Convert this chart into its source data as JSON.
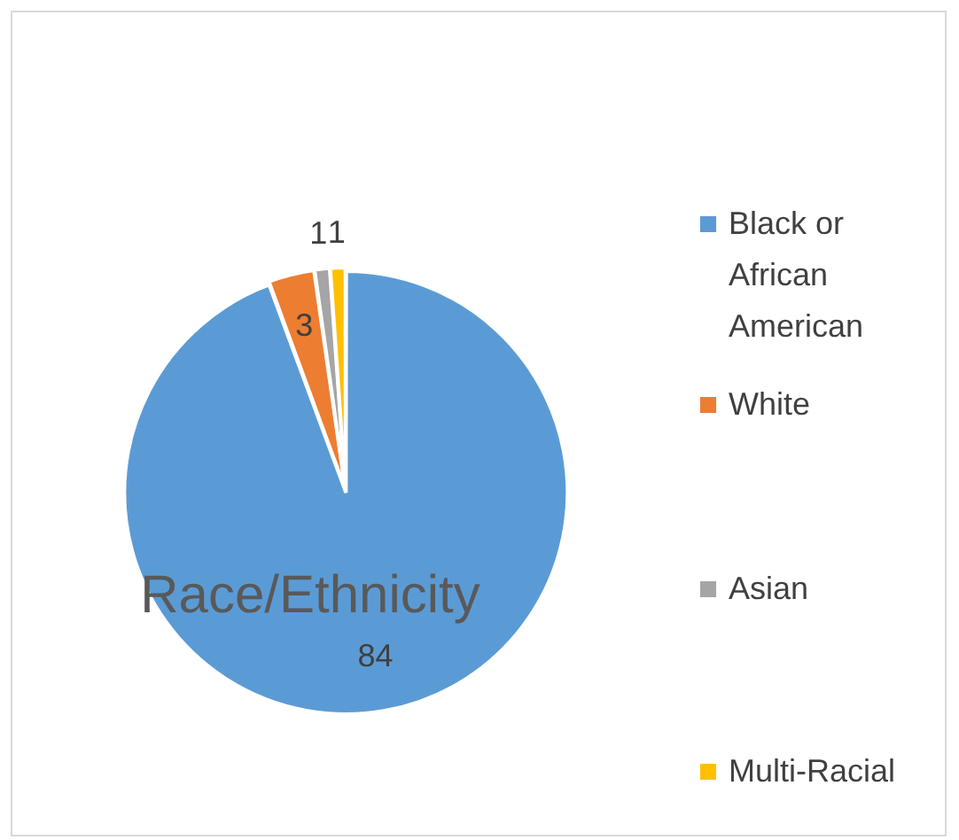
{
  "chart_data": {
    "type": "pie",
    "title": "Race/Ethnicity",
    "categories": [
      "Black or African American",
      "White",
      "Asian",
      "Multi-Racial"
    ],
    "values": [
      84,
      3,
      1,
      1
    ],
    "colors": [
      "#5b9bd5",
      "#ed7d31",
      "#a5a5a5",
      "#ffc000"
    ],
    "data_labels": true,
    "legend": "right"
  }
}
